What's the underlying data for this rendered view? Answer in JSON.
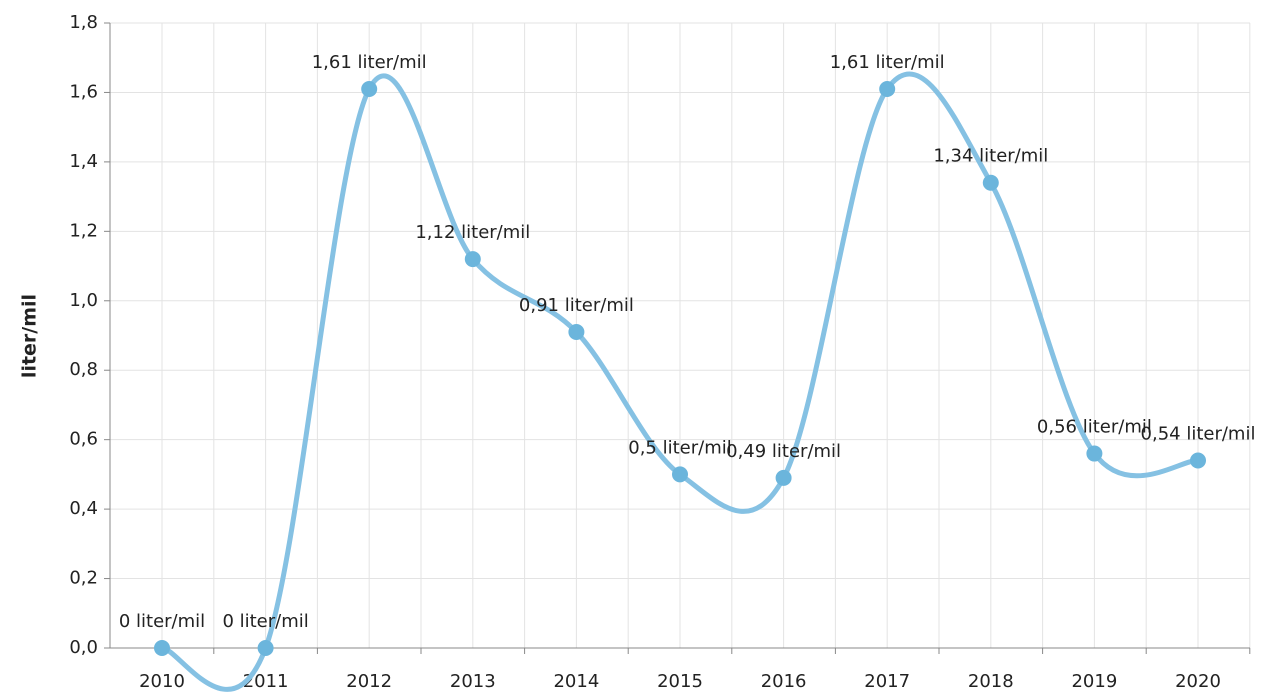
{
  "chart_data": {
    "type": "line",
    "y_label": "liter/mil",
    "categories": [
      "2010",
      "2011",
      "2012",
      "2013",
      "2014",
      "2015",
      "2016",
      "2017",
      "2018",
      "2019",
      "2020"
    ],
    "series": [
      {
        "name": "liter/mil",
        "color": "#85c1e3",
        "marker_color": "#6bb5dc",
        "values": [
          0,
          0,
          1.61,
          1.12,
          0.91,
          0.5,
          0.49,
          1.61,
          1.34,
          0.56,
          0.54
        ],
        "value_labels": [
          "0 liter/mil",
          "0 liter/mil",
          "1,61 liter/mil",
          "1,12 liter/mil",
          "0,91 liter/mil",
          "0,5 liter/mil",
          "0,49 liter/mil",
          "1,61 liter/mil",
          "1,34 liter/mil",
          "0,56 liter/mil",
          "0,54 liter/mil"
        ]
      }
    ],
    "ylim": [
      0,
      1.8
    ],
    "yticks": [
      {
        "value": 0,
        "label": "0,0"
      },
      {
        "value": 0.2,
        "label": "0,2"
      },
      {
        "value": 0.4,
        "label": "0,4"
      },
      {
        "value": 0.6,
        "label": "0,6"
      },
      {
        "value": 0.8,
        "label": "0,8"
      },
      {
        "value": 1.0,
        "label": "1,0"
      },
      {
        "value": 1.2,
        "label": "1,2"
      },
      {
        "value": 1.4,
        "label": "1,4"
      },
      {
        "value": 1.6,
        "label": "1,6"
      },
      {
        "value": 1.8,
        "label": "1,8"
      }
    ],
    "grid": true
  }
}
